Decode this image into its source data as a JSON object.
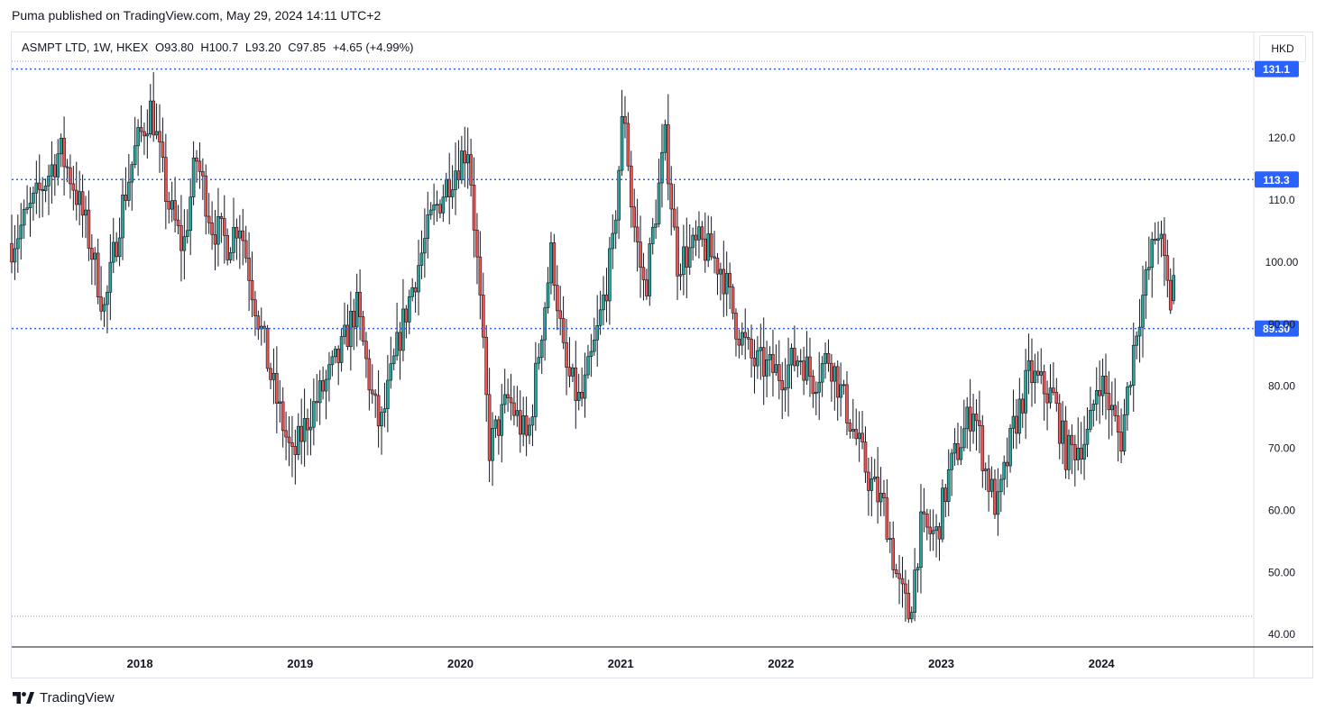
{
  "header": {
    "publish_text": "Puma published on TradingView.com, May 29, 2024 14:11 UTC+2"
  },
  "legend": {
    "symbol": "ASMPT LTD, 1W, HKEX",
    "open_label": "O",
    "open": "93.80",
    "high_label": "H",
    "high": "100.7",
    "low_label": "L",
    "low": "93.20",
    "close_label": "C",
    "close": "97.85",
    "change": "+4.65 (+4.99%)"
  },
  "currency_label": "HKD",
  "footer": {
    "brand": "TradingView",
    "logo_icon": "tradingview-logo-icon"
  },
  "colors": {
    "up": "#26a69a",
    "down": "#ef5350",
    "wick": "#131722",
    "level_line": "#2962ff",
    "level_badge": "#2962ff"
  },
  "chart_data": {
    "type": "candlestick",
    "interval": "1W",
    "currency": "HKD",
    "ylim": [
      38,
      137
    ],
    "y_ticks": [
      "40.00",
      "50.00",
      "60.00",
      "70.00",
      "80.00",
      "90.00",
      "100.00",
      "110.0",
      "120.0"
    ],
    "x_ticks": [
      "2018",
      "2019",
      "2020",
      "2021",
      "2022",
      "2023",
      "2024"
    ],
    "x_range": [
      2017.2,
      2024.95
    ],
    "horizontal_levels": [
      {
        "value": 131.1,
        "label": "131.1"
      },
      {
        "value": 113.3,
        "label": "113.3"
      },
      {
        "value": 89.3,
        "label": "89.30"
      }
    ],
    "price_path": [
      [
        2017.2,
        103
      ],
      [
        2017.35,
        110
      ],
      [
        2017.5,
        118
      ],
      [
        2017.58,
        113
      ],
      [
        2017.67,
        105
      ],
      [
        2017.78,
        92
      ],
      [
        2017.88,
        108
      ],
      [
        2017.97,
        118
      ],
      [
        2018.07,
        125
      ],
      [
        2018.17,
        110
      ],
      [
        2018.27,
        102
      ],
      [
        2018.35,
        117
      ],
      [
        2018.45,
        106
      ],
      [
        2018.55,
        103
      ],
      [
        2018.62,
        107
      ],
      [
        2018.7,
        96
      ],
      [
        2018.82,
        81
      ],
      [
        2018.95,
        68
      ],
      [
        2019.05,
        75
      ],
      [
        2019.15,
        80
      ],
      [
        2019.25,
        85
      ],
      [
        2019.35,
        93
      ],
      [
        2019.45,
        78
      ],
      [
        2019.5,
        73
      ],
      [
        2019.62,
        88
      ],
      [
        2019.72,
        98
      ],
      [
        2019.82,
        107
      ],
      [
        2019.92,
        113
      ],
      [
        2020.05,
        119
      ],
      [
        2020.12,
        94
      ],
      [
        2020.18,
        70
      ],
      [
        2020.3,
        78
      ],
      [
        2020.42,
        71
      ],
      [
        2020.5,
        88
      ],
      [
        2020.57,
        102
      ],
      [
        2020.65,
        83
      ],
      [
        2020.75,
        77
      ],
      [
        2020.85,
        88
      ],
      [
        2020.95,
        102
      ],
      [
        2021.02,
        126
      ],
      [
        2021.07,
        108
      ],
      [
        2021.15,
        95
      ],
      [
        2021.28,
        120
      ],
      [
        2021.35,
        100
      ],
      [
        2021.5,
        103
      ],
      [
        2021.63,
        99
      ],
      [
        2021.72,
        90
      ],
      [
        2021.82,
        84
      ],
      [
        2022.0,
        82
      ],
      [
        2022.12,
        85
      ],
      [
        2022.2,
        81
      ],
      [
        2022.3,
        85
      ],
      [
        2022.45,
        73
      ],
      [
        2022.55,
        65
      ],
      [
        2022.65,
        60
      ],
      [
        2022.73,
        48
      ],
      [
        2022.8,
        43
      ],
      [
        2022.87,
        57
      ],
      [
        2022.97,
        56
      ],
      [
        2023.05,
        66
      ],
      [
        2023.2,
        77
      ],
      [
        2023.28,
        66
      ],
      [
        2023.35,
        60
      ],
      [
        2023.45,
        73
      ],
      [
        2023.55,
        82
      ],
      [
        2023.7,
        78
      ],
      [
        2023.78,
        69
      ],
      [
        2023.92,
        72
      ],
      [
        2023.98,
        82
      ],
      [
        2024.05,
        77
      ],
      [
        2024.12,
        71
      ],
      [
        2024.22,
        90
      ],
      [
        2024.28,
        97
      ],
      [
        2024.35,
        106
      ],
      [
        2024.4,
        98
      ],
      [
        2024.43,
        93
      ],
      [
        2024.45,
        97.85
      ]
    ]
  }
}
